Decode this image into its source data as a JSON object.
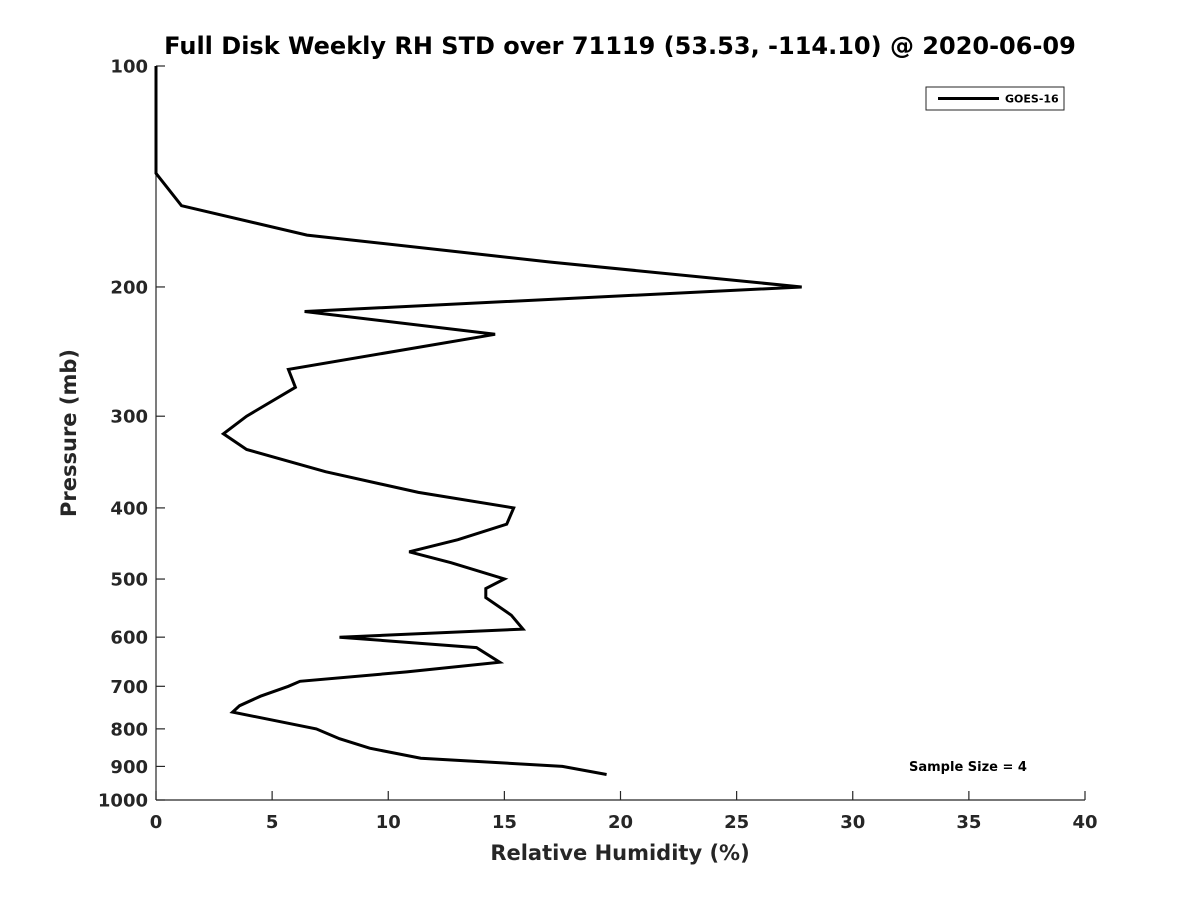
{
  "chart_data": {
    "type": "line",
    "title": "Full Disk Weekly RH STD over 71119 (53.53, -114.10) @ 2020-06-09",
    "xlabel": "Relative Humidity (%)",
    "ylabel": "Pressure (mb)",
    "xlim": [
      0,
      40
    ],
    "ylim": [
      100,
      1000
    ],
    "y_scale": "log",
    "y_reversed": true,
    "x_ticks": [
      0,
      5,
      10,
      15,
      20,
      25,
      30,
      35,
      40
    ],
    "x_tick_labels": [
      "0",
      "5",
      "10",
      "15",
      "20",
      "25",
      "30",
      "35",
      "40"
    ],
    "y_ticks": [
      100,
      200,
      300,
      400,
      500,
      600,
      700,
      800,
      900,
      1000
    ],
    "y_tick_labels": [
      "100",
      "200",
      "300",
      "400",
      "500",
      "600",
      "700",
      "800",
      "900",
      "1000"
    ],
    "grid": false,
    "legend_position": "top-right",
    "series": [
      {
        "name": "GOES-16",
        "color": "#000000",
        "points": [
          [
            0.0,
            100
          ],
          [
            0.0,
            110
          ],
          [
            0.0,
            120
          ],
          [
            0.0,
            130
          ],
          [
            0.0,
            140
          ],
          [
            1.1,
            155
          ],
          [
            6.5,
            170
          ],
          [
            17.0,
            185
          ],
          [
            27.8,
            200
          ],
          [
            6.4,
            216
          ],
          [
            14.6,
            232
          ],
          [
            5.7,
            259
          ],
          [
            6.0,
            274
          ],
          [
            3.9,
            300
          ],
          [
            2.9,
            317
          ],
          [
            3.9,
            333
          ],
          [
            7.3,
            357
          ],
          [
            11.3,
            381
          ],
          [
            15.4,
            400
          ],
          [
            15.1,
            421
          ],
          [
            13.0,
            442
          ],
          [
            10.9,
            459
          ],
          [
            12.7,
            475
          ],
          [
            15.0,
            500
          ],
          [
            14.2,
            515
          ],
          [
            14.2,
            530
          ],
          [
            15.3,
            560
          ],
          [
            15.8,
            585
          ],
          [
            7.9,
            600
          ],
          [
            13.8,
            620
          ],
          [
            14.8,
            649
          ],
          [
            10.8,
            669
          ],
          [
            6.2,
            689
          ],
          [
            5.7,
            700
          ],
          [
            4.5,
            722
          ],
          [
            3.6,
            744
          ],
          [
            3.3,
            759
          ],
          [
            6.9,
            800
          ],
          [
            7.9,
            825
          ],
          [
            9.2,
            850
          ],
          [
            11.4,
            877
          ],
          [
            17.5,
            900
          ],
          [
            19.4,
            923
          ]
        ]
      }
    ],
    "annotations": [
      "Sample Size = 4"
    ]
  }
}
